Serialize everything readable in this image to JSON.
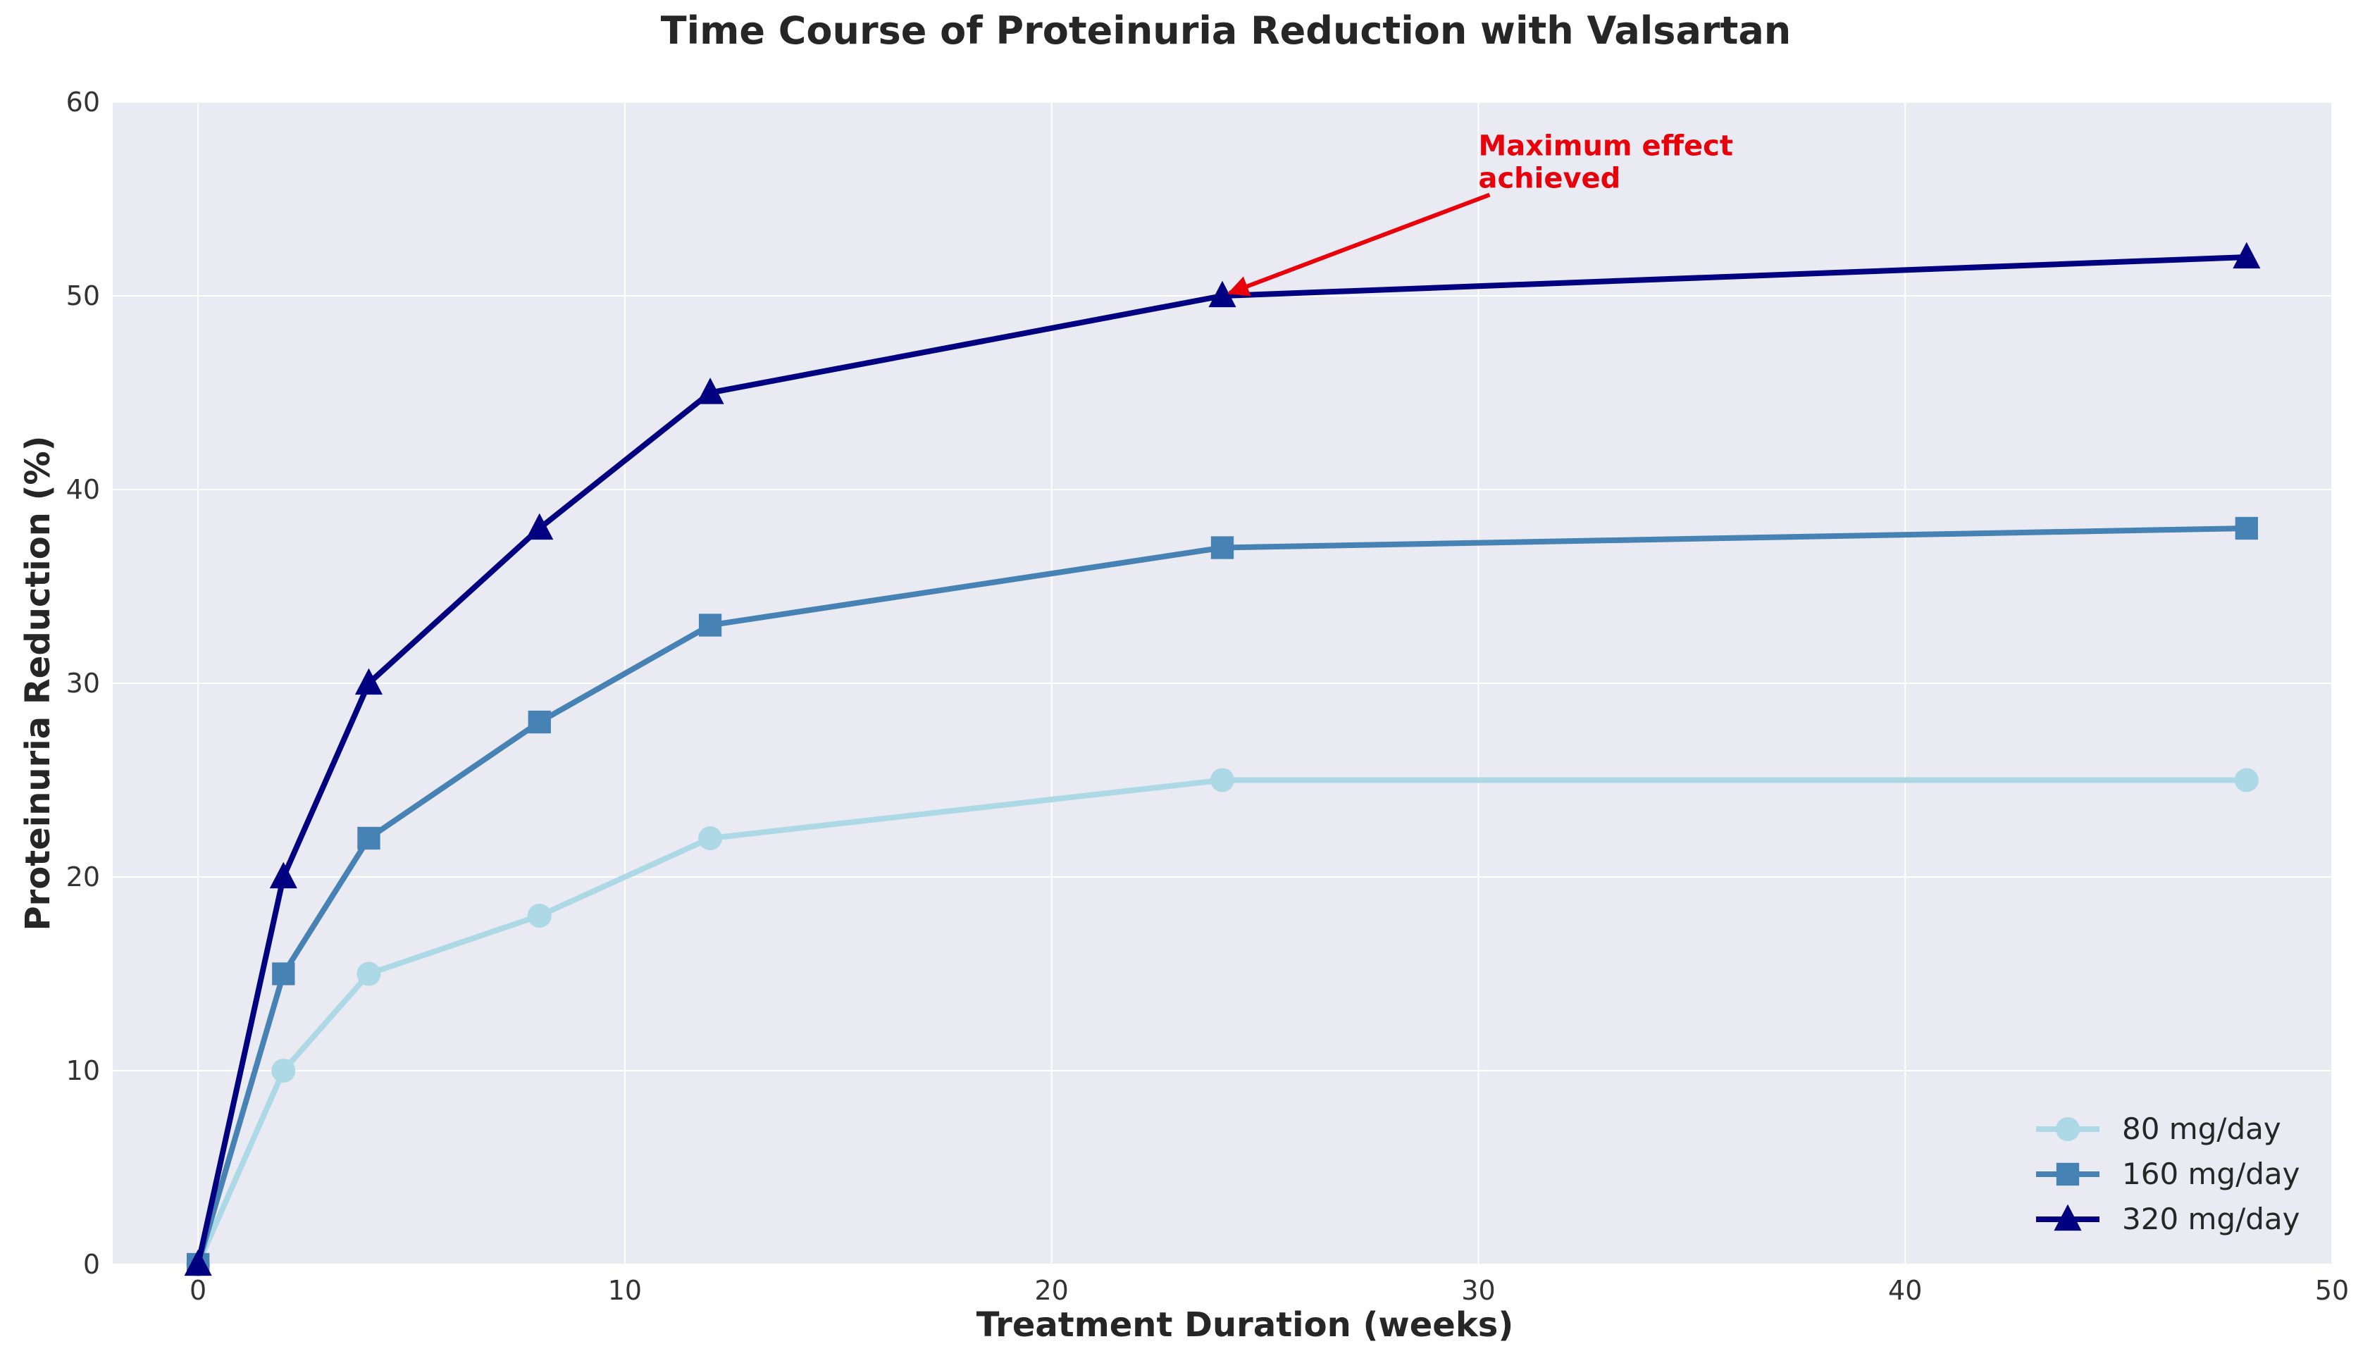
{
  "chart_data": {
    "type": "line",
    "title": "Time Course of Proteinuria Reduction with Valsartan",
    "xlabel": "Treatment Duration (weeks)",
    "ylabel": "Proteinuria Reduction (%)",
    "xlim": [
      -2,
      50
    ],
    "ylim": [
      0,
      60
    ],
    "xticks": [
      0,
      10,
      20,
      30,
      40,
      50
    ],
    "yticks": [
      0,
      10,
      20,
      30,
      40,
      50,
      60
    ],
    "grid": true,
    "legend_position": "bottom-right",
    "x": [
      0,
      2,
      4,
      8,
      12,
      24,
      48
    ],
    "series": [
      {
        "name": "80 mg/day",
        "values": [
          0,
          10,
          15,
          18,
          22,
          25,
          25
        ],
        "color": "#add8e6",
        "marker": "circle"
      },
      {
        "name": "160 mg/day",
        "values": [
          0,
          15,
          22,
          28,
          33,
          37,
          38
        ],
        "color": "#4682b4",
        "marker": "square"
      },
      {
        "name": "320 mg/day",
        "values": [
          0,
          20,
          30,
          38,
          45,
          50,
          52
        ],
        "color": "#000080",
        "marker": "triangle"
      }
    ],
    "annotations": [
      {
        "text_line1": "Maximum effect",
        "text_line2": "achieved",
        "target_x": 24,
        "target_y": 50,
        "text_x": 30,
        "text_y": 55,
        "color": "#e8000b"
      }
    ]
  },
  "colors": {
    "plot_background": "#eaeaf2",
    "grid": "#ffffff",
    "text": "#262626"
  }
}
